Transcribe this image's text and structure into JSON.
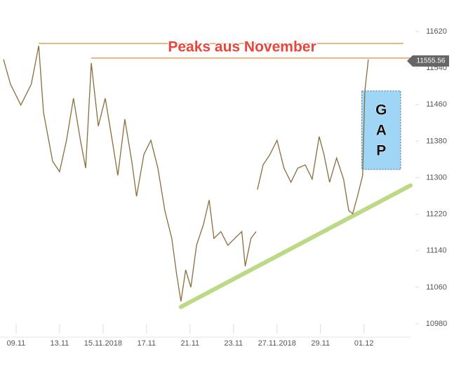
{
  "chart_data": {
    "type": "line",
    "title": "Peaks aus November",
    "xlim": [
      -0.37,
      9.07
    ],
    "ylim": [
      10950,
      11660
    ],
    "xticks": [
      {
        "value": 0,
        "label": "09.11"
      },
      {
        "value": 1,
        "label": "13.11"
      },
      {
        "value": 2,
        "label": "15.11.2018"
      },
      {
        "value": 3,
        "label": "17.11"
      },
      {
        "value": 4,
        "label": "21.11"
      },
      {
        "value": 5,
        "label": "23.11"
      },
      {
        "value": 6,
        "label": "27.11.2018"
      },
      {
        "value": 7,
        "label": "29.11"
      },
      {
        "value": 8,
        "label": "01.12"
      }
    ],
    "yticks": [
      10980,
      11060,
      11140,
      11220,
      11300,
      11380,
      11460,
      11540,
      11620
    ],
    "series": [
      {
        "color": "#8a6d3b",
        "x": [
          -0.29,
          -0.13,
          0.11,
          0.35,
          0.52,
          0.63,
          0.84,
          1.0,
          1.16,
          1.32,
          1.48,
          1.6,
          1.73,
          1.89,
          2.05,
          2.21,
          2.34,
          2.5,
          2.66,
          2.77,
          2.94,
          3.1,
          3.26,
          3.42,
          3.58,
          3.69,
          3.79,
          3.9,
          4.02,
          4.15,
          4.31,
          4.44,
          4.55,
          4.71,
          4.87,
          5.03,
          5.19,
          5.27,
          5.4,
          5.52,
          5.53,
          5.55,
          5.68,
          5.84,
          6.0,
          6.16,
          6.32,
          6.48,
          6.65,
          6.81,
          6.97,
          7.08,
          7.21,
          7.37,
          7.53,
          7.65,
          7.74,
          7.85,
          7.97,
          8.02,
          8.1
        ],
        "values": [
          11559,
          11505,
          11459,
          11505,
          11589,
          11443,
          11336,
          11313,
          11382,
          11474,
          11382,
          11321,
          11551,
          11413,
          11474,
          11382,
          11305,
          11428,
          11336,
          11259,
          11351,
          11382,
          11321,
          11228,
          11167,
          11090,
          11029,
          11098,
          11060,
          11152,
          11198,
          11251,
          11167,
          11182,
          11152,
          11167,
          11182,
          11106,
          11167,
          11182,
          null,
          11274,
          11328,
          11351,
          11382,
          11321,
          11290,
          11321,
          11328,
          11297,
          11390,
          11351,
          11290,
          11343,
          11297,
          11228,
          11221,
          11259,
          11305,
          11489,
          11559
        ]
      }
    ],
    "current_price": {
      "value": 11555.56,
      "label": "11555.56"
    },
    "peak_lines": [
      {
        "x": 0.52,
        "value": 11594
      },
      {
        "x": 1.73,
        "value": 11562
      }
    ],
    "trend_line": {
      "x": [
        3.79,
        9.07
      ],
      "values": [
        11017,
        11283
      ]
    },
    "gap": {
      "x": 7.95,
      "values": [
        11490,
        11318
      ],
      "label": [
        "G",
        "A",
        "P"
      ]
    }
  }
}
